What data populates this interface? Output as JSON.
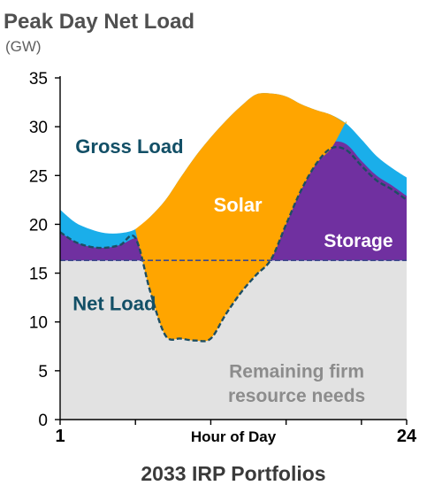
{
  "title": "Peak Day Net Load",
  "subtitle": "(GW)",
  "footer": "2033 IRP Portfolios",
  "colors": {
    "gross_load": "#1aaeea",
    "storage": "#7030a0",
    "solar": "#ffa500",
    "remaining": "#e2e2e2",
    "line_dark": "#1d4e63",
    "gross_label": "#124f66",
    "remaining_label": "#8c8c8c",
    "axis": "#000000"
  },
  "chart_data": {
    "type": "area",
    "title": "Peak Day Net Load",
    "subtitle": "(GW)",
    "xlabel": "Hour of Day",
    "ylabel": "",
    "xlim": [
      1,
      24
    ],
    "ylim": [
      0,
      35
    ],
    "yticks": [
      "0",
      "5",
      "10",
      "15",
      "20",
      "25",
      "30",
      "35"
    ],
    "xtick_labels": [
      "1",
      "24"
    ],
    "grid": false,
    "x": [
      1,
      2,
      3,
      4,
      5,
      6,
      7,
      8,
      9,
      10,
      11,
      12,
      13,
      14,
      15,
      16,
      17,
      18,
      19,
      20,
      21,
      22,
      23,
      24
    ],
    "series": [
      {
        "name": "Gross Load",
        "values": [
          21.5,
          20.2,
          19.5,
          19.1,
          19.1,
          19.5,
          20.8,
          22.5,
          24.8,
          27.0,
          28.9,
          30.6,
          32.1,
          33.3,
          33.4,
          33.1,
          32.3,
          31.7,
          31.2,
          30.3,
          28.7,
          27.0,
          25.8,
          24.8
        ]
      },
      {
        "name": "Net Load",
        "values": [
          19.2,
          18.2,
          17.7,
          17.6,
          17.9,
          18.6,
          13.0,
          8.6,
          8.3,
          8.1,
          8.3,
          10.8,
          13.0,
          14.8,
          16.4,
          20.0,
          23.5,
          26.2,
          27.8,
          27.6,
          26.0,
          24.5,
          23.6,
          22.5
        ]
      },
      {
        "name": "Storage",
        "values": [
          19.2,
          18.2,
          17.7,
          17.6,
          17.9,
          18.6,
          18.6,
          18.6,
          18.6,
          18.6,
          18.6,
          18.6,
          18.6,
          18.6,
          18.6,
          20.4,
          24.2,
          27.2,
          28.4,
          28.2,
          26.5,
          25.0,
          24.0,
          22.9
        ]
      },
      {
        "name": "Solar",
        "values": [
          0,
          0,
          0,
          0,
          0,
          0.9,
          7.8,
          13.9,
          16.5,
          18.9,
          20.6,
          19.8,
          19.1,
          18.5,
          17.0,
          13.1,
          8.8,
          5.5,
          3.4,
          0,
          0,
          0,
          0,
          0
        ]
      },
      {
        "name": "Remaining firm resource needs",
        "values": [
          16.3,
          16.3,
          16.3,
          16.3,
          16.3,
          16.3,
          16.3,
          16.3,
          16.3,
          16.3,
          16.3,
          16.3,
          16.3,
          16.3,
          16.3,
          16.3,
          16.3,
          16.3,
          16.3,
          16.3,
          16.3,
          16.3,
          16.3,
          16.3
        ]
      }
    ],
    "annotations": [
      {
        "text": "Gross Load",
        "x": 5.6,
        "y": 27.3,
        "color": "#124f66",
        "size": 22
      },
      {
        "text": "Solar",
        "x": 12.8,
        "y": 21.3,
        "color": "#ffffff",
        "size": 22
      },
      {
        "text": "Storage",
        "x": 20.8,
        "y": 17.7,
        "color": "#ffffff",
        "size": 21
      },
      {
        "text": "Net Load",
        "x": 4.6,
        "y": 11.2,
        "color": "#124f66",
        "size": 22
      },
      {
        "text": "Remaining firm",
        "x": 16.7,
        "y": 4.3,
        "color": "#8c8c8c",
        "size": 21
      },
      {
        "text": "resource needs",
        "x": 16.7,
        "y": 1.8,
        "color": "#8c8c8c",
        "size": 21
      }
    ]
  }
}
